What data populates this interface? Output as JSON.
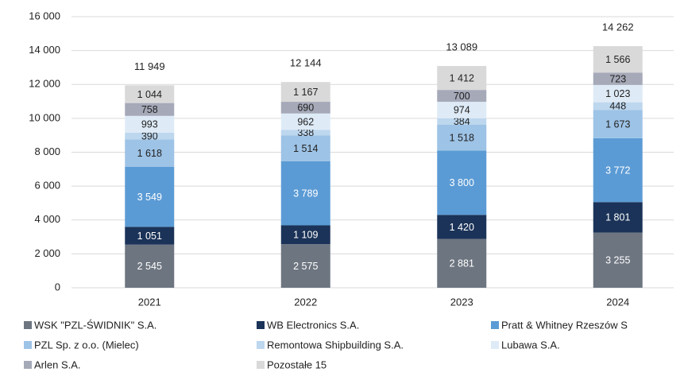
{
  "chart_data": {
    "type": "stacked_bar",
    "categories": [
      "2021",
      "2022",
      "2023",
      "2024"
    ],
    "series": [
      {
        "name": "WSK \"PZL-ŚWIDNIK\" S.A.",
        "color": "#6d7580",
        "values": [
          2545,
          2575,
          2881,
          3255
        ],
        "value_labels": [
          "2 545",
          "2 575",
          "2 881",
          "3 255"
        ]
      },
      {
        "name": "WB Electronics S.A.",
        "color": "#1b3358",
        "values": [
          1051,
          1109,
          1420,
          1801
        ],
        "value_labels": [
          "1 051",
          "1 109",
          "1 420",
          "1 801"
        ]
      },
      {
        "name": "Pratt & Whitney Rzeszów S",
        "color": "#5b9bd5",
        "values": [
          3549,
          3789,
          3800,
          3772
        ],
        "value_labels": [
          "3 549",
          "3 789",
          "3 800",
          "3 772"
        ]
      },
      {
        "name": "PZL Sp. z o.o. (Mielec)",
        "color": "#9dc3e6",
        "values": [
          1618,
          1514,
          1518,
          1673
        ],
        "value_labels": [
          "1 618",
          "1 514",
          "1 518",
          "1 673"
        ]
      },
      {
        "name": "Remontowa Shipbuilding S.A.",
        "color": "#bdd7ee",
        "values": [
          390,
          338,
          384,
          448
        ]
      },
      {
        "name": "Lubawa S.A.",
        "color": "#deebf7",
        "values": [
          993,
          962,
          974,
          1023
        ],
        "value_labels": [
          "993",
          "962",
          "974",
          "1 023"
        ]
      },
      {
        "name": "Arlen S.A.",
        "color": "#a5a9b8",
        "values": [
          758,
          690,
          700,
          723
        ]
      },
      {
        "name": "Pozostałe 15",
        "color": "#d9d9d9",
        "values": [
          1044,
          1167,
          1412,
          1566
        ],
        "value_labels": [
          "1 044",
          "1 167",
          "1 412",
          "1 566"
        ]
      }
    ],
    "totals": [
      11949,
      12144,
      13089,
      14262
    ],
    "total_labels": [
      "11 949",
      "12 144",
      "13 089",
      "14 262"
    ],
    "ylim": [
      0,
      16000
    ],
    "yticks": [
      0,
      {
        "value": 2000,
        "label": "2 000"
      },
      {
        "value": 4000,
        "label": "4 000"
      },
      {
        "value": 6000,
        "label": "6 000"
      },
      {
        "value": 8000,
        "label": "8 000"
      },
      {
        "value": 10000,
        "label": "10 000"
      },
      {
        "value": 12000,
        "label": "12 000"
      },
      {
        "value": 14000,
        "label": "14 000"
      },
      {
        "value": 16000,
        "label": "16 000"
      }
    ],
    "grid": true
  }
}
